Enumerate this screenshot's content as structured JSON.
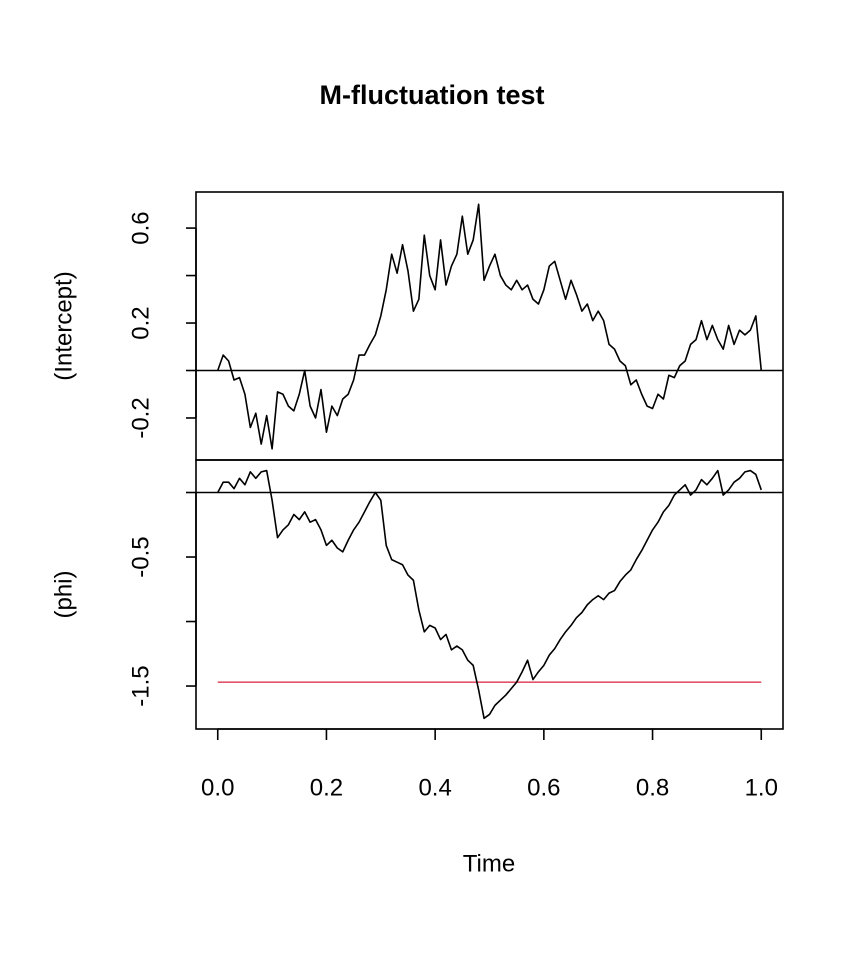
{
  "chart_data": {
    "type": "line",
    "title": "M-fluctuation test",
    "xlabel": "Time",
    "xlim": [
      -0.04,
      1.04
    ],
    "xticks": [
      {
        "value": 0,
        "label": "0.0"
      },
      0.2,
      0.4,
      0.6,
      0.8,
      {
        "value": 1,
        "label": "1.0"
      }
    ],
    "x": [
      0,
      0.01,
      0.02,
      0.03,
      0.04,
      0.05,
      0.06,
      0.07,
      0.08,
      0.09,
      0.1,
      0.11,
      0.12,
      0.13,
      0.14,
      0.15,
      0.16,
      0.17,
      0.18,
      0.19,
      0.2,
      0.21,
      0.22,
      0.23,
      0.24,
      0.25,
      0.26,
      0.27,
      0.28,
      0.29,
      0.3,
      0.31,
      0.32,
      0.33,
      0.34,
      0.35,
      0.36,
      0.37,
      0.38,
      0.39,
      0.4,
      0.41,
      0.42,
      0.43,
      0.44,
      0.45,
      0.46,
      0.47,
      0.48,
      0.49,
      0.5,
      0.51,
      0.52,
      0.53,
      0.54,
      0.55,
      0.56,
      0.57,
      0.58,
      0.59,
      0.6,
      0.61,
      0.62,
      0.63,
      0.64,
      0.65,
      0.66,
      0.67,
      0.68,
      0.69,
      0.7,
      0.71,
      0.72,
      0.73,
      0.74,
      0.75,
      0.76,
      0.77,
      0.78,
      0.79,
      0.8,
      0.81,
      0.82,
      0.83,
      0.84,
      0.85,
      0.86,
      0.87,
      0.88,
      0.89,
      0.9,
      0.91,
      0.92,
      0.93,
      0.94,
      0.95,
      0.96,
      0.97,
      0.98,
      0.99,
      1
    ],
    "panels": [
      {
        "ylabel": "(Intercept)",
        "ylim": [
          -0.377,
          0.752
        ],
        "yticks": [
          -0.2,
          0.2,
          0.6
        ],
        "yticks_minor": [
          0,
          0.4
        ],
        "reference_line": 0,
        "series": [
          {
            "color": "#000000",
            "values": [
              0,
              0.065,
              0.04,
              -0.04,
              -0.03,
              -0.1,
              -0.24,
              -0.18,
              -0.31,
              -0.19,
              -0.33,
              -0.09,
              -0.1,
              -0.15,
              -0.17,
              -0.1,
              0,
              -0.15,
              -0.2,
              -0.08,
              -0.26,
              -0.15,
              -0.19,
              -0.12,
              -0.1,
              -0.04,
              0.065,
              0.065,
              0.11,
              0.15,
              0.23,
              0.34,
              0.49,
              0.41,
              0.53,
              0.42,
              0.25,
              0.3,
              0.57,
              0.4,
              0.34,
              0.55,
              0.36,
              0.44,
              0.49,
              0.65,
              0.49,
              0.55,
              0.7,
              0.38,
              0.44,
              0.49,
              0.4,
              0.36,
              0.34,
              0.38,
              0.34,
              0.36,
              0.3,
              0.28,
              0.34,
              0.44,
              0.46,
              0.38,
              0.3,
              0.38,
              0.32,
              0.25,
              0.28,
              0.21,
              0.25,
              0.21,
              0.11,
              0.09,
              0.04,
              0.02,
              -0.06,
              -0.04,
              -0.1,
              -0.15,
              -0.16,
              -0.1,
              -0.12,
              -0.02,
              -0.03,
              0.02,
              0.04,
              0.11,
              0.13,
              0.21,
              0.13,
              0.19,
              0.13,
              0.09,
              0.19,
              0.11,
              0.17,
              0.15,
              0.17,
              0.23,
              0
            ]
          }
        ]
      },
      {
        "ylabel": "(phi)",
        "ylim": [
          -1.833,
          0.252
        ],
        "yticks": [
          -1.5,
          -0.5
        ],
        "yticks_minor": [
          -1,
          0
        ],
        "reference_line": 0,
        "boundary": {
          "value": -1.47,
          "color": "#df536b"
        },
        "series": [
          {
            "color": "#000000",
            "values": [
              0,
              0.08,
              0.08,
              0.03,
              0.11,
              0.06,
              0.16,
              0.11,
              0.16,
              0.17,
              -0.06,
              -0.35,
              -0.29,
              -0.25,
              -0.17,
              -0.21,
              -0.15,
              -0.23,
              -0.21,
              -0.29,
              -0.41,
              -0.37,
              -0.43,
              -0.46,
              -0.37,
              -0.29,
              -0.23,
              -0.15,
              -0.07,
              0,
              -0.06,
              -0.41,
              -0.52,
              -0.54,
              -0.56,
              -0.64,
              -0.68,
              -0.91,
              -1.08,
              -1.03,
              -1.05,
              -1.14,
              -1.1,
              -1.22,
              -1.19,
              -1.22,
              -1.3,
              -1.34,
              -1.53,
              -1.75,
              -1.72,
              -1.65,
              -1.61,
              -1.57,
              -1.52,
              -1.47,
              -1.39,
              -1.3,
              -1.45,
              -1.39,
              -1.34,
              -1.26,
              -1.21,
              -1.14,
              -1.08,
              -1.03,
              -0.97,
              -0.93,
              -0.87,
              -0.83,
              -0.8,
              -0.83,
              -0.78,
              -0.76,
              -0.69,
              -0.64,
              -0.6,
              -0.52,
              -0.45,
              -0.37,
              -0.29,
              -0.23,
              -0.15,
              -0.1,
              -0.02,
              0.02,
              0.06,
              -0.02,
              0.02,
              0.1,
              0.06,
              0.11,
              0.17,
              -0.02,
              0.02,
              0.08,
              0.11,
              0.16,
              0.17,
              0.14,
              0.02
            ]
          }
        ]
      }
    ]
  }
}
